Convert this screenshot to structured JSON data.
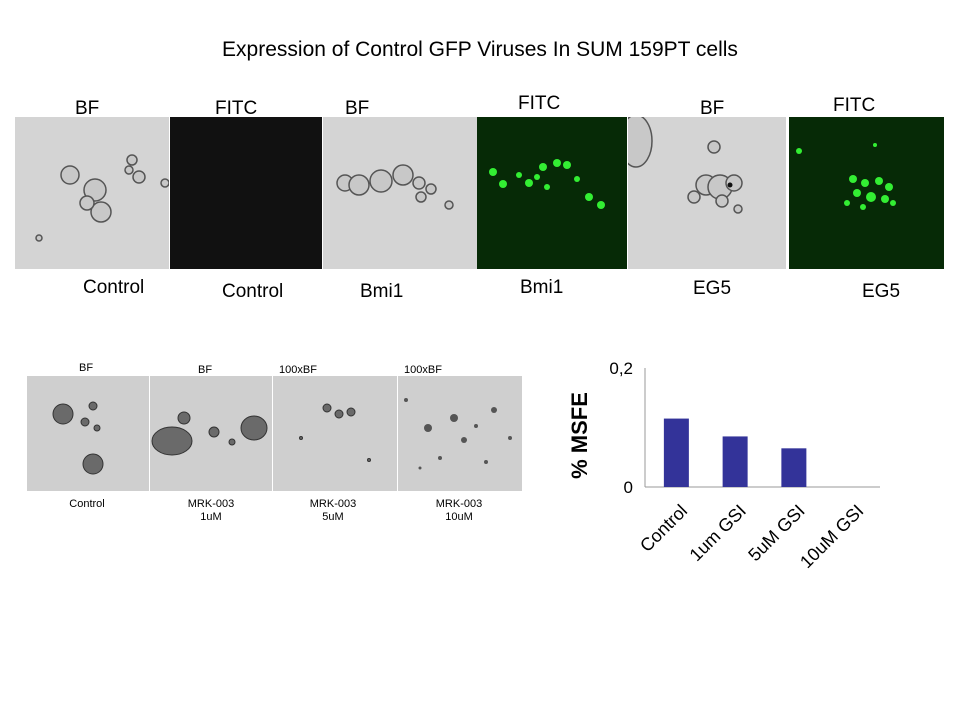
{
  "title": "Expression of Control GFP Viruses In SUM 159PT cells",
  "top_row": {
    "headers": [
      "BF",
      "FITC",
      "BF",
      "FITC",
      "BF",
      "FITC"
    ],
    "captions": [
      "Control",
      "Control",
      "Bmi1",
      "Bmi1",
      "EG5",
      "EG5"
    ]
  },
  "bottom_row": {
    "headers": [
      "BF",
      "BF",
      "100xBF",
      "100xBF"
    ],
    "captions": [
      {
        "line1": "Control",
        "line2": ""
      },
      {
        "line1": "MRK-003",
        "line2": "1uM"
      },
      {
        "line1": "MRK-003",
        "line2": "5uM"
      },
      {
        "line1": "MRK-003",
        "line2": "10uM"
      }
    ]
  },
  "chart_data": {
    "type": "bar",
    "categories": [
      "Control",
      "1um GSI",
      "5uM GSI",
      "10uM GSI"
    ],
    "values": [
      0.115,
      0.085,
      0.065,
      0
    ],
    "ylabel": "% MSFE",
    "ylim": [
      0,
      0.2
    ],
    "yticks": [
      "0",
      "0,2"
    ],
    "bar_color": "#333399",
    "grid": false
  }
}
